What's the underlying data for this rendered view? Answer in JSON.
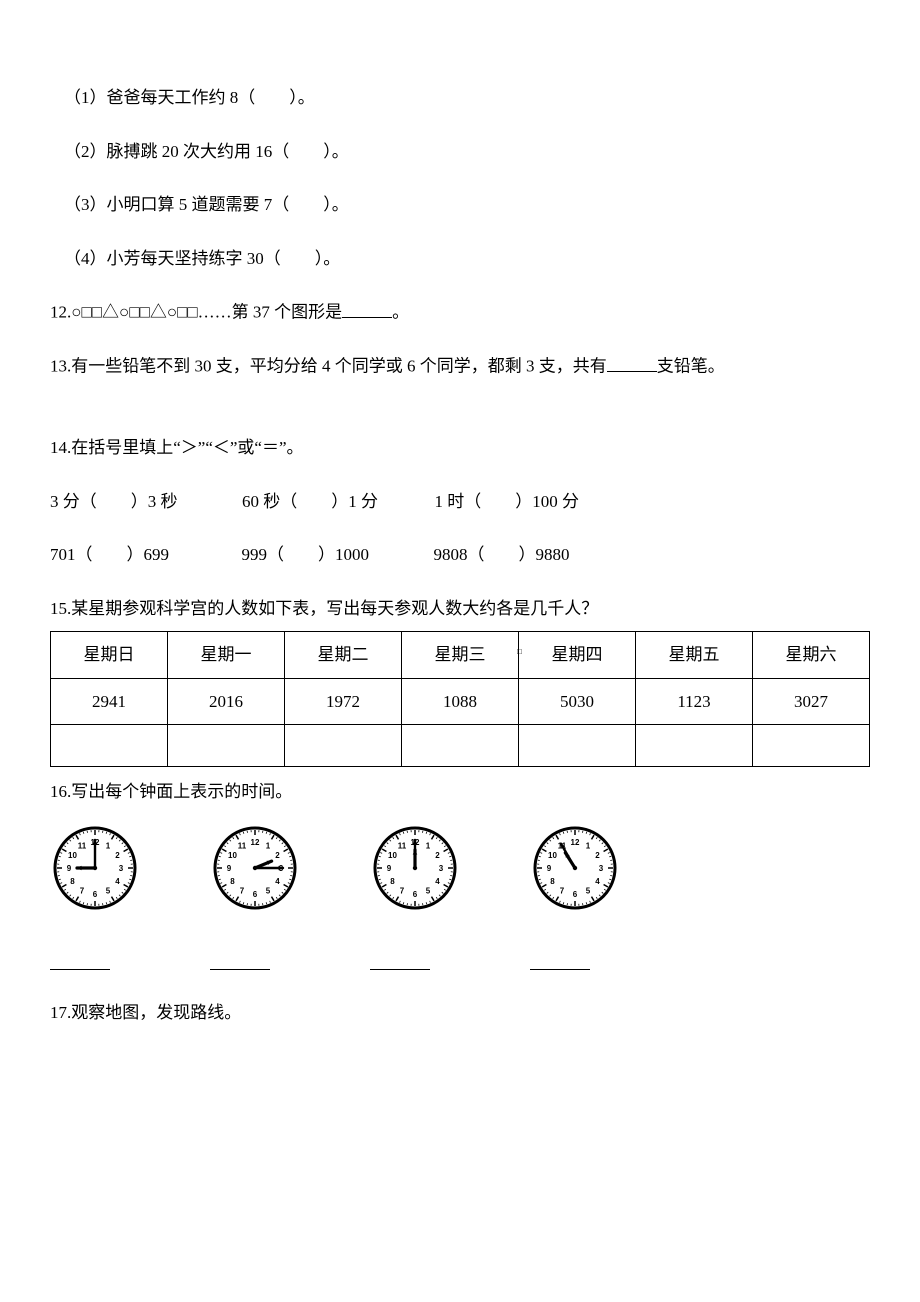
{
  "q11": {
    "items": [
      "（1）爸爸每天工作约 8（　　）。",
      "（2）脉搏跳 20 次大约用 16（　　）。",
      "（3）小明口算 5 道题需要 7（　　）。",
      "（4）小芳每天坚持练字 30（　　）。"
    ]
  },
  "q12": {
    "prefix": "12.○□□△○□□△○□□……第 37 个图形是",
    "suffix": "。"
  },
  "q13": {
    "prefix": "13.有一些铅笔不到 30 支，平均分给 4 个同学或 6 个同学，都剩 3 支，共有",
    "suffix": "支铅笔。"
  },
  "q14": {
    "title": "14.在括号里填上“＞”“＜”或“＝”。",
    "row1": [
      "3 分（　　）3 秒",
      "60 秒（　　）1 分",
      "1 时（　　）100 分"
    ],
    "row2": [
      "701（　　）699",
      "999（　　）1000",
      "9808（　　）9880"
    ]
  },
  "q15": {
    "title": "15.某星期参观科学宫的人数如下表，写出每天参观人数大约各是几千人？",
    "header": [
      "星期日",
      "星期一",
      "星期二",
      "星期三",
      "星期四",
      "星期五",
      "星期六"
    ],
    "values": [
      "2941",
      "2016",
      "1972",
      "1088",
      "5030",
      "1123",
      "3027"
    ],
    "marker": "□"
  },
  "q16": {
    "title": "16.写出每个钟面上表示的时间。",
    "clocks": [
      {
        "hour": 9,
        "minute": 0
      },
      {
        "hour": 2,
        "minute": 15
      },
      {
        "hour": 12,
        "minute": 0
      },
      {
        "hour": 10,
        "minute": 55
      }
    ]
  },
  "q17": {
    "title": "17.观察地图，发现路线。"
  },
  "clock_style": {
    "face_stroke": "#000000",
    "face_fill": "#ffffff",
    "radius": 40,
    "stroke_width": 3,
    "num_fontsize": 8,
    "hour_hand_len": 18,
    "minute_hand_len": 28,
    "hand_stroke": "#000000"
  }
}
